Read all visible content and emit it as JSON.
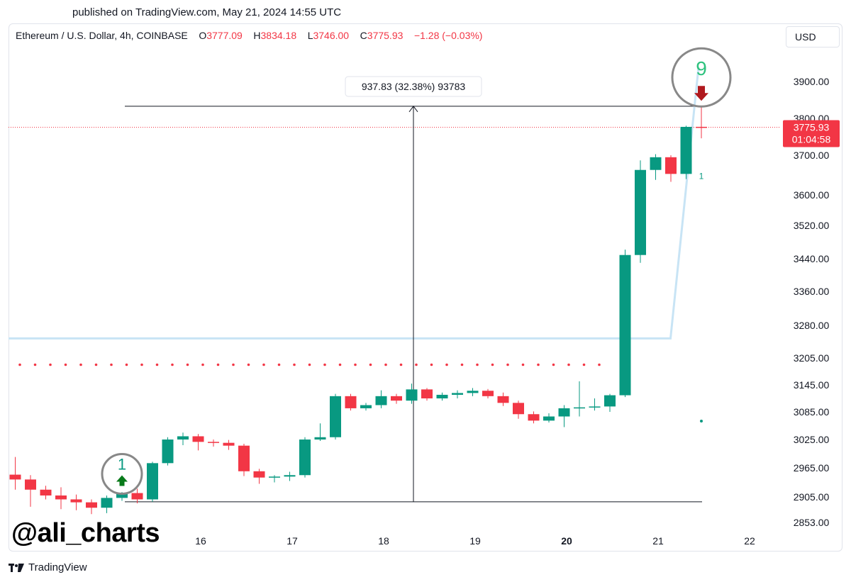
{
  "published": "published on TradingView.com, May 21, 2024 14:55 UTC",
  "header": {
    "symbol": "Ethereum / U.S. Dollar, 4h, COINBASE",
    "o_key": "O",
    "o_val": "3777.09",
    "h_key": "H",
    "h_val": "3834.18",
    "l_key": "L",
    "l_val": "3746.00",
    "c_key": "C",
    "c_val": "3775.93",
    "change": "−1.28 (−0.03%)"
  },
  "currency": "USD",
  "watermark": "@ali_charts",
  "brand": "TradingView",
  "colors": {
    "up": "#089981",
    "down": "#f23645",
    "ma_line": "#c8e4f5",
    "price_label_bg": "#f23645",
    "dots": "#f23645"
  },
  "chart_data": {
    "type": "candlestick",
    "title": "Ethereum / U.S. Dollar, 4h, COINBASE",
    "x_ticks": [
      "16",
      "17",
      "18",
      "19",
      "20",
      "21",
      "22"
    ],
    "x_tick_positions_days": [
      16,
      17,
      18,
      19,
      20,
      21,
      22
    ],
    "y_ticks": [
      "3900.00",
      "3800.00",
      "3700.00",
      "3600.00",
      "3520.00",
      "3440.00",
      "3360.00",
      "3280.00",
      "3205.00",
      "3145.00",
      "3085.00",
      "3025.00",
      "2965.00",
      "2905.00",
      "2853.00"
    ],
    "y_tick_values": [
      3900,
      3800,
      3700,
      3600,
      3520,
      3440,
      3360,
      3280,
      3205,
      3145,
      3085,
      3025,
      2965,
      2905,
      2853
    ],
    "candles": [
      {
        "o": 2951,
        "h": 2988,
        "l": 2920,
        "c": 2941
      },
      {
        "o": 2941,
        "h": 2950,
        "l": 2885,
        "c": 2920
      },
      {
        "o": 2920,
        "h": 2928,
        "l": 2900,
        "c": 2908
      },
      {
        "o": 2908,
        "h": 2925,
        "l": 2880,
        "c": 2900
      },
      {
        "o": 2900,
        "h": 2910,
        "l": 2878,
        "c": 2894
      },
      {
        "o": 2894,
        "h": 2900,
        "l": 2870,
        "c": 2883
      },
      {
        "o": 2883,
        "h": 2908,
        "l": 2872,
        "c": 2903
      },
      {
        "o": 2903,
        "h": 2915,
        "l": 2897,
        "c": 2913
      },
      {
        "o": 2913,
        "h": 2922,
        "l": 2892,
        "c": 2900
      },
      {
        "o": 2900,
        "h": 2978,
        "l": 2895,
        "c": 2975
      },
      {
        "o": 2975,
        "h": 3030,
        "l": 2970,
        "c": 3025
      },
      {
        "o": 3025,
        "h": 3040,
        "l": 3013,
        "c": 3032
      },
      {
        "o": 3032,
        "h": 3037,
        "l": 3002,
        "c": 3020
      },
      {
        "o": 3020,
        "h": 3025,
        "l": 3010,
        "c": 3018
      },
      {
        "o": 3018,
        "h": 3024,
        "l": 3003,
        "c": 3012
      },
      {
        "o": 3012,
        "h": 3016,
        "l": 2948,
        "c": 2958
      },
      {
        "o": 2958,
        "h": 2963,
        "l": 2932,
        "c": 2945
      },
      {
        "o": 2945,
        "h": 2950,
        "l": 2935,
        "c": 2947
      },
      {
        "o": 2947,
        "h": 2957,
        "l": 2938,
        "c": 2950
      },
      {
        "o": 2950,
        "h": 3030,
        "l": 2945,
        "c": 3025
      },
      {
        "o": 3025,
        "h": 3060,
        "l": 3022,
        "c": 3030
      },
      {
        "o": 3030,
        "h": 3125,
        "l": 3025,
        "c": 3120
      },
      {
        "o": 3120,
        "h": 3125,
        "l": 3088,
        "c": 3093
      },
      {
        "o": 3093,
        "h": 3105,
        "l": 3088,
        "c": 3100
      },
      {
        "o": 3100,
        "h": 3133,
        "l": 3093,
        "c": 3120
      },
      {
        "o": 3120,
        "h": 3125,
        "l": 3103,
        "c": 3110
      },
      {
        "o": 3110,
        "h": 3148,
        "l": 3103,
        "c": 3135
      },
      {
        "o": 3135,
        "h": 3138,
        "l": 3110,
        "c": 3115
      },
      {
        "o": 3115,
        "h": 3128,
        "l": 3110,
        "c": 3123
      },
      {
        "o": 3123,
        "h": 3133,
        "l": 3115,
        "c": 3127
      },
      {
        "o": 3127,
        "h": 3138,
        "l": 3120,
        "c": 3132
      },
      {
        "o": 3132,
        "h": 3136,
        "l": 3115,
        "c": 3120
      },
      {
        "o": 3120,
        "h": 3128,
        "l": 3098,
        "c": 3105
      },
      {
        "o": 3105,
        "h": 3110,
        "l": 3070,
        "c": 3080
      },
      {
        "o": 3080,
        "h": 3086,
        "l": 3060,
        "c": 3066
      },
      {
        "o": 3066,
        "h": 3082,
        "l": 3062,
        "c": 3075
      },
      {
        "o": 3075,
        "h": 3100,
        "l": 3052,
        "c": 3093
      },
      {
        "o": 3093,
        "h": 3153,
        "l": 3075,
        "c": 3095
      },
      {
        "o": 3095,
        "h": 3115,
        "l": 3088,
        "c": 3097
      },
      {
        "o": 3097,
        "h": 3125,
        "l": 3085,
        "c": 3122
      },
      {
        "o": 3122,
        "h": 3462,
        "l": 3118,
        "c": 3449
      },
      {
        "o": 3449,
        "h": 3687,
        "l": 3430,
        "c": 3663
      },
      {
        "o": 3663,
        "h": 3703,
        "l": 3638,
        "c": 3695
      },
      {
        "o": 3695,
        "h": 3700,
        "l": 3633,
        "c": 3653
      },
      {
        "o": 3653,
        "h": 3780,
        "l": 3640,
        "c": 3777
      },
      {
        "o": 3777.09,
        "h": 3834.18,
        "l": 3746.0,
        "c": 3775.93
      }
    ],
    "measure": {
      "from_price": 2895,
      "to_price": 3833,
      "label": "937.83 (32.38%) 93783"
    },
    "sequential_setup": [
      {
        "label": "1",
        "signal": "buy",
        "candle_index": 7
      },
      {
        "label": "9",
        "signal": "sell",
        "candle_index": 45
      }
    ],
    "small_count_label": "1",
    "dotted_level": 3190,
    "ma_level": 3250,
    "last_price": {
      "value": "3775.93",
      "countdown": "01:04:58"
    }
  }
}
